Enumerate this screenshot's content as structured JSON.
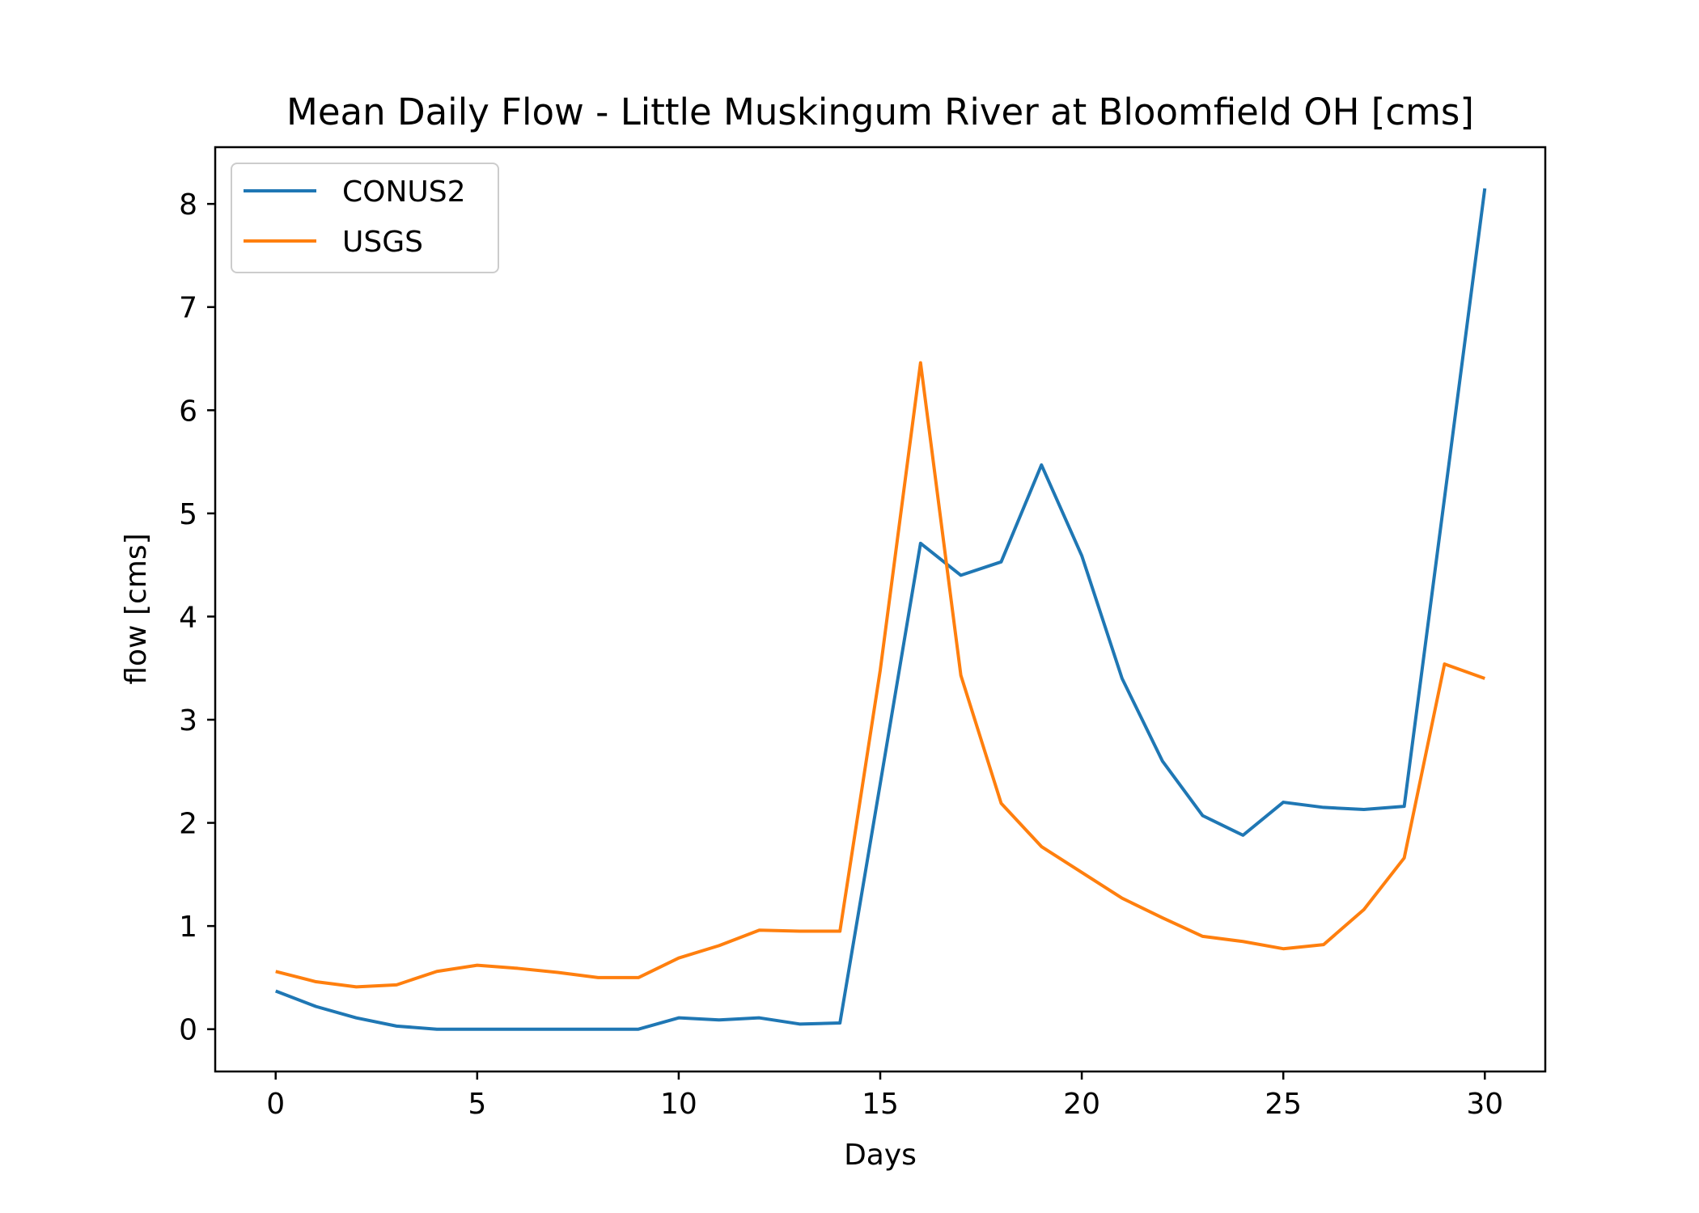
{
  "chart_data": {
    "type": "line",
    "title": "Mean Daily Flow - Little Muskingum River at Bloomfield OH [cms]",
    "xlabel": "Days",
    "ylabel": "flow [cms]",
    "xlim": [
      -1.5,
      31.5
    ],
    "ylim": [
      -0.41,
      8.55
    ],
    "xticks": [
      0,
      5,
      10,
      15,
      20,
      25,
      30
    ],
    "yticks": [
      0,
      1,
      2,
      3,
      4,
      5,
      6,
      7,
      8
    ],
    "grid": false,
    "legend_position": "upper-left",
    "x": [
      0,
      1,
      2,
      3,
      4,
      5,
      6,
      7,
      8,
      9,
      10,
      11,
      12,
      13,
      14,
      15,
      16,
      17,
      18,
      19,
      20,
      21,
      22,
      23,
      24,
      25,
      26,
      27,
      28,
      29,
      30
    ],
    "series": [
      {
        "name": "CONUS2",
        "color": "#1f77b4",
        "values": [
          0.37,
          0.22,
          0.11,
          0.03,
          0.0,
          0.0,
          0.0,
          0.0,
          0.0,
          0.0,
          0.11,
          0.09,
          0.11,
          0.05,
          0.06,
          2.38,
          4.71,
          4.4,
          4.53,
          5.47,
          4.59,
          3.4,
          2.6,
          2.07,
          1.88,
          2.2,
          2.15,
          2.13,
          2.16,
          5.15,
          8.15
        ]
      },
      {
        "name": "USGS",
        "color": "#ff7f0e",
        "values": [
          0.56,
          0.46,
          0.41,
          0.43,
          0.56,
          0.62,
          0.59,
          0.55,
          0.5,
          0.5,
          0.69,
          0.81,
          0.96,
          0.95,
          0.95,
          3.48,
          6.46,
          3.43,
          2.19,
          1.77,
          1.52,
          1.27,
          1.08,
          0.9,
          0.85,
          0.78,
          0.82,
          1.16,
          1.66,
          3.54,
          3.4
        ]
      }
    ]
  }
}
